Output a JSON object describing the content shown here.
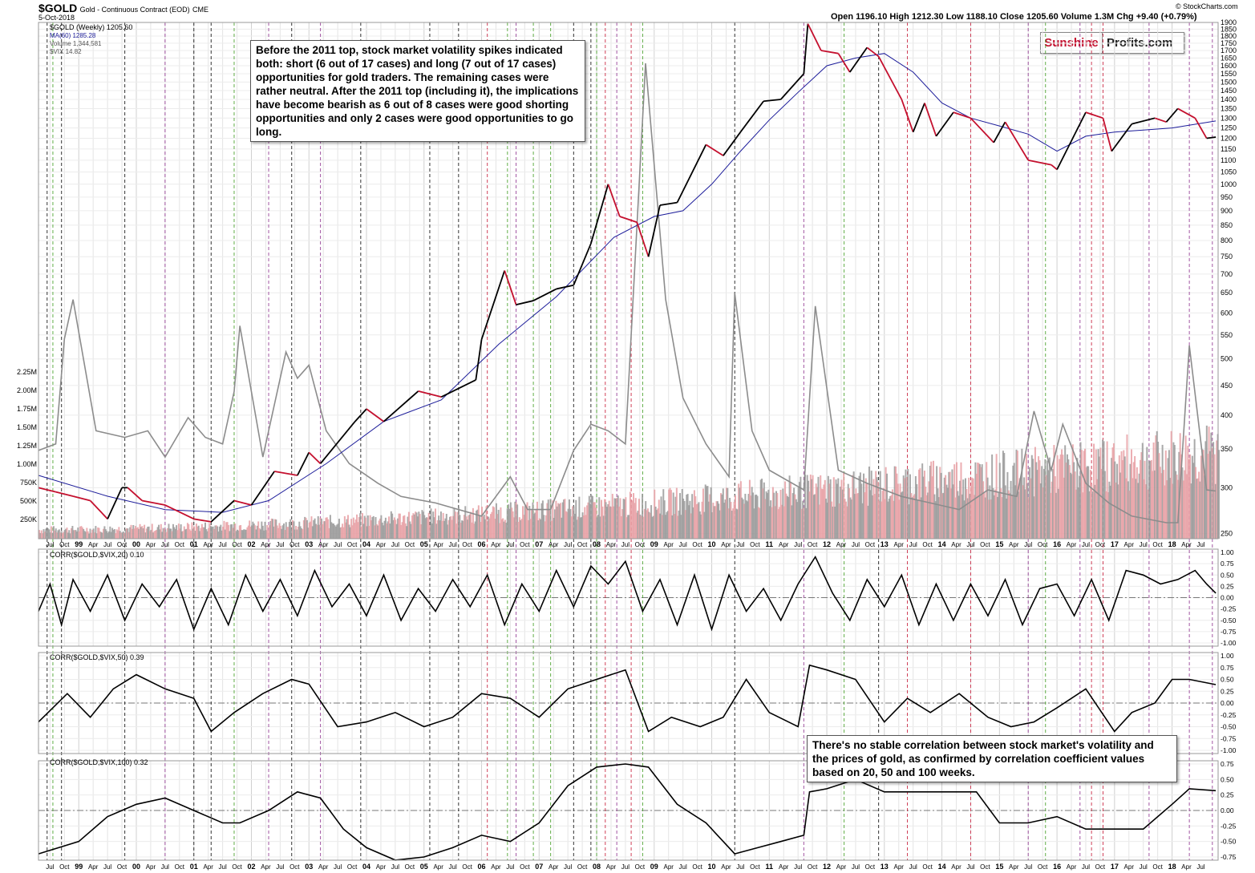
{
  "header": {
    "symbol": "$GOLD",
    "name": "Gold - Continuous Contract (EOD)",
    "exchange": "CME",
    "date": "5-Oct-2018",
    "quote": "Open 1196.10  High 1212.30  Low 1188.10  Close 1205.60  Volume 1.3M  Chg +9.40 (+0.79%)",
    "credit": "© StockCharts.com"
  },
  "logo": {
    "part1": "Sunshine",
    "part2": "Profits.com",
    "accent": "#c4102e"
  },
  "annotations": {
    "top": "Before the 2011 top, stock market volatility spikes indicated both: short (6 out of 17 cases) and long (7 out of 17 cases) opportunities for gold traders. The remaining cases were rather neutral. After the 2011 top (including it), the implications have become bearish as 6 out of 8 cases were good shorting opportunities and only 2 cases were good opportunities to go long.",
    "bottom": "There's no stable correlation between stock market's volatility and the prices of gold, as confirmed by correlation coefficient values based on 20, 50 and 100 weeks."
  },
  "colors": {
    "price_up": "#000000",
    "price_down": "#c4102e",
    "ma": "#1c1c9a",
    "vix": "#8c8c8c",
    "volume": "#e8a0a4",
    "volume_dark": "#9a9a9a",
    "corr": "#000000",
    "line_red": "#c4102e",
    "line_green": "#3a9a1a",
    "line_purple": "#8a2a8a",
    "line_black": "#000000"
  },
  "chart_data": [
    {
      "type": "line",
      "title": "$GOLD Gold - Continuous Contract (EOD) CME",
      "legend": [
        "$GOLD (Weekly) 1205.60",
        "MA(60) 1285.28",
        "Volume 1,344,581",
        "$VIX 14.82"
      ],
      "y_scale": "log",
      "ylim": [
        245,
        1900
      ],
      "y_ticks": [
        250,
        300,
        350,
        400,
        450,
        500,
        550,
        600,
        650,
        700,
        750,
        800,
        850,
        900,
        950,
        1000,
        1050,
        1100,
        1150,
        1200,
        1250,
        1300,
        1350,
        1400,
        1450,
        1500,
        1550,
        1600,
        1650,
        1700,
        1750,
        1800,
        1850,
        1900
      ],
      "volume_ticks": [
        "250K",
        "500K",
        "750K",
        "1.00M",
        "1.25M",
        "1.50M",
        "1.75M",
        "2.00M",
        "2.25M"
      ],
      "x_years": [
        "99",
        "00",
        "01",
        "02",
        "03",
        "04",
        "05",
        "06",
        "07",
        "08",
        "09",
        "10",
        "11",
        "12",
        "13",
        "14",
        "15",
        "16",
        "17",
        "18"
      ],
      "x_months": [
        "Apr",
        "Jul",
        "Oct"
      ],
      "x_range": [
        1998.3,
        2018.8
      ],
      "series": [
        {
          "name": "$GOLD (Weekly)",
          "x": [
            1998.3,
            1998.6,
            1998.9,
            1999.2,
            1999.5,
            1999.75,
            1999.85,
            2000.1,
            2000.5,
            2001.0,
            2001.3,
            2001.7,
            2002.0,
            2002.4,
            2002.8,
            2003.0,
            2003.2,
            2003.8,
            2004.0,
            2004.3,
            2004.9,
            2005.3,
            2005.9,
            2006.0,
            2006.4,
            2006.6,
            2006.9,
            2007.3,
            2007.6,
            2007.9,
            2008.2,
            2008.4,
            2008.7,
            2008.9,
            2009.1,
            2009.4,
            2009.9,
            2010.2,
            2010.5,
            2010.9,
            2011.2,
            2011.6,
            2011.67,
            2011.9,
            2012.2,
            2012.4,
            2012.7,
            2012.9,
            2013.3,
            2013.5,
            2013.7,
            2013.9,
            2014.2,
            2014.5,
            2014.9,
            2015.1,
            2015.5,
            2015.9,
            2016.0,
            2016.5,
            2016.8,
            2016.95,
            2017.3,
            2017.7,
            2017.9,
            2018.1,
            2018.4,
            2018.6,
            2018.76
          ],
          "values": [
            300,
            295,
            290,
            285,
            265,
            300,
            300,
            285,
            280,
            265,
            262,
            285,
            280,
            320,
            315,
            345,
            330,
            390,
            410,
            390,
            440,
            430,
            460,
            540,
            710,
            620,
            630,
            660,
            670,
            790,
            1000,
            880,
            860,
            750,
            920,
            930,
            1170,
            1120,
            1230,
            1390,
            1400,
            1550,
            1890,
            1700,
            1680,
            1560,
            1720,
            1660,
            1400,
            1230,
            1380,
            1210,
            1330,
            1300,
            1180,
            1280,
            1100,
            1080,
            1060,
            1330,
            1300,
            1140,
            1270,
            1300,
            1280,
            1350,
            1300,
            1200,
            1205.6
          ]
        },
        {
          "name": "MA(60)",
          "x": [
            1998.3,
            1999.5,
            2000.5,
            2001.5,
            2002.3,
            2003.3,
            2004.3,
            2005.3,
            2006.3,
            2007.3,
            2008.3,
            2009.0,
            2009.5,
            2010.0,
            2010.5,
            2011.0,
            2011.5,
            2012.0,
            2012.5,
            2013.0,
            2013.5,
            2014.0,
            2014.5,
            2015.0,
            2015.5,
            2016.0,
            2016.5,
            2017.0,
            2017.5,
            2018.0,
            2018.76
          ],
          "values": [
            315,
            290,
            275,
            272,
            285,
            330,
            390,
            425,
            530,
            640,
            810,
            880,
            900,
            1000,
            1140,
            1290,
            1440,
            1600,
            1650,
            1680,
            1560,
            1380,
            1300,
            1260,
            1220,
            1140,
            1210,
            1230,
            1240,
            1250,
            1285.28
          ]
        },
        {
          "name": "$VIX",
          "x": [
            1998.3,
            1998.6,
            1998.75,
            1998.9,
            1999.3,
            1999.8,
            2000.2,
            2000.5,
            2000.9,
            2001.2,
            2001.5,
            2001.7,
            2001.8,
            2002.2,
            2002.6,
            2002.8,
            2003.0,
            2003.3,
            2003.7,
            2004.2,
            2004.6,
            2005.2,
            2005.6,
            2006.0,
            2006.5,
            2006.8,
            2007.2,
            2007.6,
            2007.9,
            2008.2,
            2008.5,
            2008.85,
            2009.2,
            2009.5,
            2009.9,
            2010.3,
            2010.4,
            2010.7,
            2011.0,
            2011.6,
            2011.8,
            2012.2,
            2012.7,
            2013.3,
            2013.8,
            2014.3,
            2014.8,
            2015.3,
            2015.6,
            2015.9,
            2016.1,
            2016.5,
            2016.9,
            2017.3,
            2017.9,
            2018.1,
            2018.3,
            2018.6,
            2018.76
          ],
          "values": [
            21,
            22,
            38,
            44,
            24,
            23,
            24,
            20,
            26,
            23,
            22,
            30,
            40,
            20,
            36,
            32,
            34,
            24,
            19,
            16,
            14,
            13,
            12,
            11,
            17,
            12,
            12,
            21,
            25,
            24,
            22,
            80,
            44,
            29,
            22,
            17,
            45,
            24,
            18,
            15,
            43,
            18,
            16,
            14,
            13,
            12,
            15,
            14,
            27,
            18,
            25,
            16,
            13,
            11,
            10,
            10,
            37,
            15,
            14.82
          ]
        }
      ]
    },
    {
      "type": "line",
      "title": "CORR($GOLD,$VIX,20) 0.10",
      "ylim": [
        -1.0,
        1.0
      ],
      "y_ticks": [
        -1.0,
        -0.75,
        -0.5,
        -0.25,
        0.0,
        0.25,
        0.5,
        0.75,
        1.0
      ],
      "series": [
        {
          "name": "CORR 20",
          "x": [
            1998.3,
            1998.5,
            1998.7,
            1998.9,
            1999.2,
            1999.5,
            1999.8,
            2000.1,
            2000.4,
            2000.7,
            2001.0,
            2001.3,
            2001.6,
            2001.9,
            2002.2,
            2002.5,
            2002.8,
            2003.1,
            2003.4,
            2003.7,
            2004.0,
            2004.3,
            2004.6,
            2004.9,
            2005.2,
            2005.5,
            2005.8,
            2006.1,
            2006.4,
            2006.7,
            2007.0,
            2007.3,
            2007.6,
            2007.9,
            2008.2,
            2008.5,
            2008.8,
            2009.1,
            2009.4,
            2009.7,
            2010.0,
            2010.3,
            2010.6,
            2010.9,
            2011.2,
            2011.5,
            2011.8,
            2012.1,
            2012.4,
            2012.7,
            2013.0,
            2013.3,
            2013.6,
            2013.9,
            2014.2,
            2014.5,
            2014.8,
            2015.1,
            2015.4,
            2015.7,
            2016.0,
            2016.3,
            2016.6,
            2016.9,
            2017.2,
            2017.5,
            2017.8,
            2018.1,
            2018.4,
            2018.6,
            2018.76
          ],
          "values": [
            -0.3,
            0.3,
            -0.6,
            0.4,
            -0.3,
            0.5,
            -0.5,
            0.3,
            -0.2,
            0.4,
            -0.7,
            0.2,
            -0.6,
            0.5,
            -0.3,
            0.4,
            -0.4,
            0.6,
            -0.2,
            0.3,
            -0.4,
            0.5,
            -0.5,
            0.2,
            -0.3,
            0.4,
            -0.2,
            0.5,
            -0.6,
            0.3,
            -0.3,
            0.6,
            -0.2,
            0.7,
            0.3,
            0.8,
            -0.3,
            0.4,
            -0.6,
            0.5,
            -0.7,
            0.5,
            -0.3,
            0.2,
            -0.5,
            0.3,
            0.9,
            0.1,
            -0.5,
            0.4,
            -0.2,
            0.5,
            -0.6,
            0.3,
            -0.5,
            0.3,
            -0.4,
            0.4,
            -0.6,
            0.2,
            0.3,
            -0.4,
            0.4,
            -0.5,
            0.6,
            0.5,
            0.3,
            0.4,
            0.6,
            0.3,
            0.1
          ]
        }
      ]
    },
    {
      "type": "line",
      "title": "CORR($GOLD,$VIX,50) 0.39",
      "ylim": [
        -1.0,
        1.0
      ],
      "y_ticks": [
        -1.0,
        -0.75,
        -0.5,
        -0.25,
        0.0,
        0.25,
        0.5,
        0.75,
        1.0
      ],
      "series": [
        {
          "name": "CORR 50",
          "x": [
            1998.3,
            1998.8,
            1999.2,
            1999.6,
            2000.0,
            2000.5,
            2001.0,
            2001.3,
            2001.7,
            2002.2,
            2002.7,
            2003.0,
            2003.5,
            2004.0,
            2004.5,
            2005.0,
            2005.5,
            2006.0,
            2006.5,
            2007.0,
            2007.5,
            2008.0,
            2008.5,
            2008.9,
            2009.3,
            2009.8,
            2010.2,
            2010.6,
            2011.0,
            2011.5,
            2011.7,
            2012.0,
            2012.5,
            2013.0,
            2013.4,
            2013.8,
            2014.3,
            2014.8,
            2015.2,
            2015.6,
            2016.0,
            2016.5,
            2017.0,
            2017.3,
            2017.7,
            2018.0,
            2018.3,
            2018.76
          ],
          "values": [
            -0.4,
            0.2,
            -0.3,
            0.3,
            0.6,
            0.3,
            0.1,
            -0.6,
            -0.2,
            0.2,
            0.5,
            0.4,
            -0.5,
            -0.4,
            -0.2,
            -0.5,
            -0.3,
            0.2,
            0.1,
            -0.3,
            0.3,
            0.5,
            0.7,
            -0.6,
            -0.3,
            -0.5,
            -0.3,
            0.5,
            -0.2,
            -0.5,
            0.8,
            0.7,
            0.5,
            -0.4,
            0.1,
            -0.2,
            0.2,
            -0.3,
            -0.5,
            -0.4,
            -0.1,
            0.3,
            -0.6,
            -0.2,
            0.0,
            0.5,
            0.5,
            0.39
          ]
        }
      ]
    },
    {
      "type": "line",
      "title": "CORR($GOLD,$VIX,100) 0.32",
      "ylim": [
        -0.75,
        0.75
      ],
      "y_ticks": [
        -0.75,
        -0.5,
        -0.25,
        0.0,
        0.25,
        0.5,
        0.75
      ],
      "series": [
        {
          "name": "CORR 100",
          "x": [
            1998.3,
            1999.0,
            1999.5,
            2000.0,
            2000.5,
            2001.0,
            2001.5,
            2001.8,
            2002.3,
            2002.8,
            2003.2,
            2003.6,
            2004.0,
            2004.5,
            2005.0,
            2005.5,
            2006.0,
            2006.5,
            2007.0,
            2007.5,
            2008.0,
            2008.5,
            2008.9,
            2009.4,
            2009.9,
            2010.4,
            2010.8,
            2011.2,
            2011.6,
            2011.7,
            2012.0,
            2012.5,
            2013.0,
            2014.0,
            2014.6,
            2015.0,
            2015.5,
            2016.0,
            2016.5,
            2017.0,
            2017.5,
            2018.0,
            2018.3,
            2018.76
          ],
          "values": [
            -0.7,
            -0.5,
            -0.1,
            0.1,
            0.2,
            0.0,
            -0.2,
            -0.2,
            0.0,
            0.3,
            0.2,
            -0.3,
            -0.6,
            -0.8,
            -0.75,
            -0.6,
            -0.4,
            -0.5,
            -0.2,
            0.4,
            0.7,
            0.75,
            0.7,
            0.1,
            -0.2,
            -0.7,
            -0.6,
            -0.5,
            -0.4,
            0.3,
            0.35,
            0.5,
            0.3,
            0.3,
            0.3,
            -0.2,
            -0.2,
            -0.1,
            -0.3,
            -0.3,
            -0.3,
            0.1,
            0.35,
            0.32
          ]
        }
      ]
    }
  ]
}
